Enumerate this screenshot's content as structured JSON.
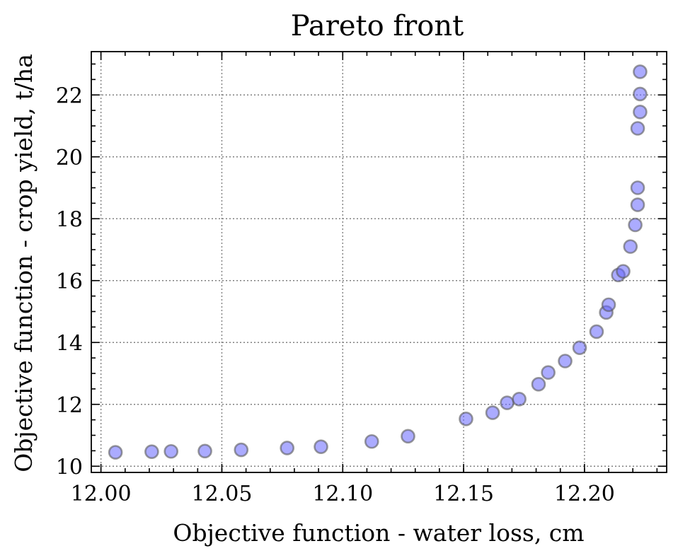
{
  "chart_data": {
    "type": "scatter",
    "title": "Pareto front",
    "xlabel": "Objective function - water loss, cm",
    "ylabel": "Objective function - crop yield, t/ha",
    "xlim": [
      11.996,
      12.234
    ],
    "ylim": [
      9.8,
      23.4
    ],
    "xticks": [
      12.0,
      12.05,
      12.1,
      12.15,
      12.2
    ],
    "xtick_labels": [
      "12.00",
      "12.05",
      "12.10",
      "12.15",
      "12.20"
    ],
    "yticks": [
      10,
      12,
      14,
      16,
      18,
      20,
      22
    ],
    "ytick_labels": [
      "10",
      "12",
      "14",
      "16",
      "18",
      "20",
      "22"
    ],
    "x_minor_step": 0.01,
    "y_minor_step": 0.5,
    "grid": true,
    "marker_color": "#6666ff",
    "marker_edge_color": "#5a5a5a",
    "series": [
      {
        "points": [
          [
            12.006,
            10.45
          ],
          [
            12.021,
            10.47
          ],
          [
            12.029,
            10.48
          ],
          [
            12.043,
            10.49
          ],
          [
            12.058,
            10.53
          ],
          [
            12.077,
            10.59
          ],
          [
            12.091,
            10.63
          ],
          [
            12.112,
            10.8
          ],
          [
            12.127,
            10.97
          ],
          [
            12.151,
            11.53
          ],
          [
            12.162,
            11.73
          ],
          [
            12.168,
            12.05
          ],
          [
            12.173,
            12.17
          ],
          [
            12.181,
            12.65
          ],
          [
            12.185,
            13.03
          ],
          [
            12.192,
            13.4
          ],
          [
            12.198,
            13.83
          ],
          [
            12.205,
            14.35
          ],
          [
            12.209,
            14.97
          ],
          [
            12.21,
            15.22
          ],
          [
            12.214,
            16.18
          ],
          [
            12.216,
            16.3
          ],
          [
            12.219,
            17.1
          ],
          [
            12.221,
            17.8
          ],
          [
            12.222,
            18.45
          ],
          [
            12.222,
            19.0
          ],
          [
            12.222,
            20.92
          ],
          [
            12.223,
            21.45
          ],
          [
            12.223,
            22.03
          ],
          [
            12.223,
            22.75
          ]
        ]
      }
    ]
  }
}
